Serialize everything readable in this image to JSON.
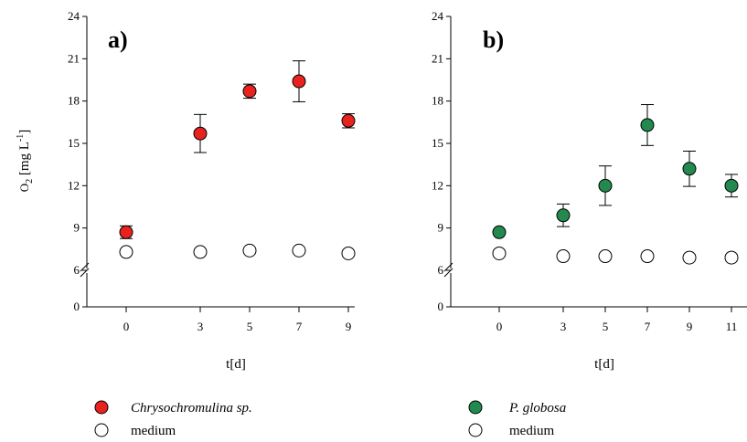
{
  "chart_data": [
    {
      "type": "scatter",
      "panel_label": "a)",
      "x": [
        0,
        3,
        5,
        7,
        9
      ],
      "xticks": [
        "0",
        "3",
        "5",
        "7",
        "9"
      ],
      "xlabel": "t[d]",
      "ylabel": "O₂ [mg L⁻¹]",
      "yticks": [
        "0",
        "6",
        "9",
        "12",
        "15",
        "18",
        "21",
        "24"
      ],
      "yaxis_break": "between 0 and 6",
      "series": [
        {
          "name": "Chrysochromulina sp.",
          "marker": "filled-circle",
          "color": "#e8231f",
          "values": [
            8.7,
            15.7,
            18.7,
            19.4,
            16.6
          ],
          "errors": [
            0.45,
            1.35,
            0.5,
            1.45,
            0.5
          ]
        },
        {
          "name": "medium",
          "marker": "open-circle",
          "color": "#ffffff",
          "values": [
            7.3,
            7.3,
            7.4,
            7.4,
            7.2
          ],
          "errors": [
            0,
            0,
            0,
            0,
            0
          ]
        }
      ]
    },
    {
      "type": "scatter",
      "panel_label": "b)",
      "x": [
        0,
        3,
        5,
        7,
        9,
        11
      ],
      "xticks": [
        "0",
        "3",
        "5",
        "7",
        "9",
        "11"
      ],
      "xlabel": "t[d]",
      "yticks": [
        "0",
        "6",
        "9",
        "12",
        "15",
        "18",
        "21",
        "24"
      ],
      "yaxis_break": "between 0 and 6",
      "series": [
        {
          "name": "P. globosa",
          "marker": "filled-circle",
          "color": "#238a4f",
          "values": [
            8.7,
            9.9,
            12.0,
            16.3,
            13.2,
            12.0
          ],
          "errors": [
            0,
            0.8,
            1.4,
            1.45,
            1.25,
            0.8
          ]
        },
        {
          "name": "medium",
          "marker": "open-circle",
          "color": "#ffffff",
          "values": [
            7.2,
            7.0,
            7.0,
            7.0,
            6.9,
            6.9
          ],
          "errors": [
            0,
            0,
            0,
            0,
            0,
            0
          ]
        }
      ]
    }
  ]
}
